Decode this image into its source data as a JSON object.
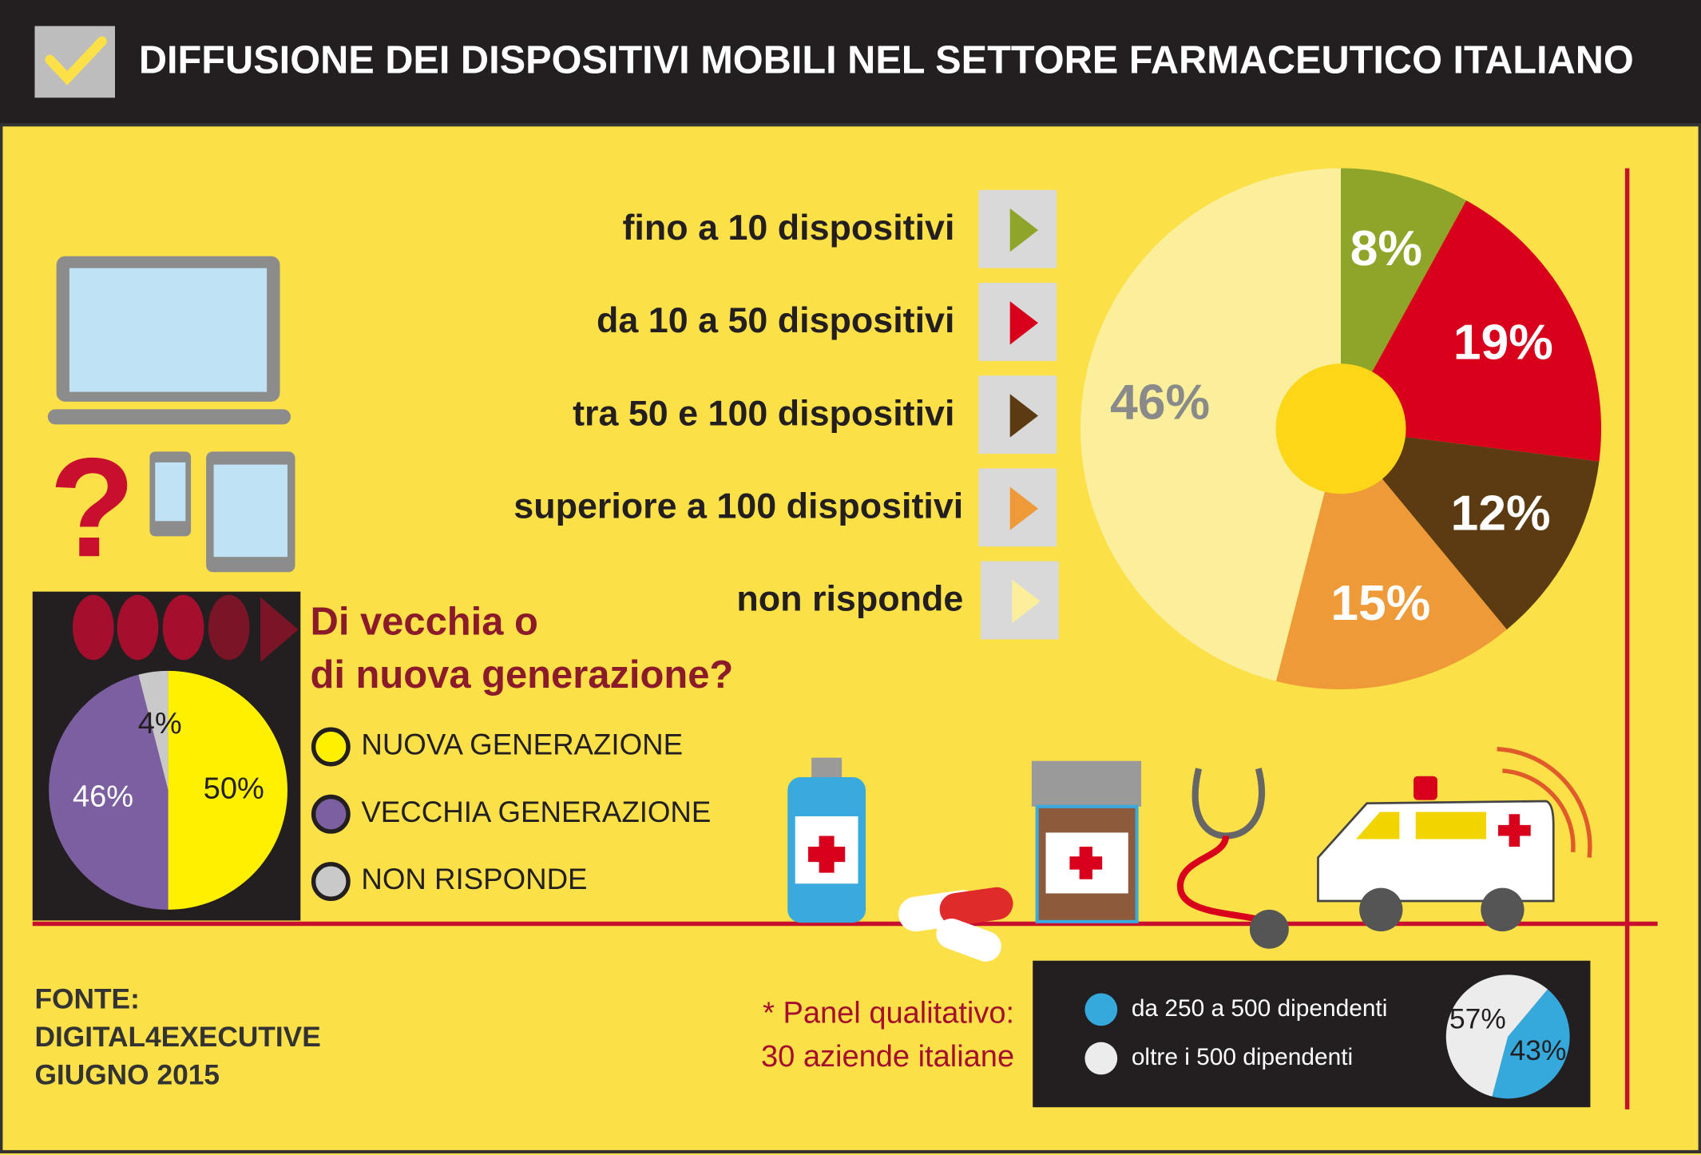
{
  "title": "DIFFUSIONE DEI DISPOSITIVI MOBILI NEL SETTORE FARMACEUTICO ITALIANO",
  "chart_data": [
    {
      "type": "pie",
      "categories": [
        "fino a 10 dispositivi",
        "da 10 a 50 dispositivi",
        "tra 50 e 100 dispositivi",
        "superiore a 100 dispositivi",
        "non risponde"
      ],
      "values": [
        8,
        19,
        12,
        15,
        46
      ],
      "value_labels": [
        "8%",
        "19%",
        "12%",
        "15%",
        "46%"
      ],
      "colors": [
        "#8fa52a",
        "#d9001c",
        "#5c3a12",
        "#ef9a38",
        "#fcef9c"
      ]
    },
    {
      "type": "pie",
      "title": [
        "Di vecchia o",
        "di nuova generazione?"
      ],
      "categories": [
        "NUOVA GENERAZIONE",
        "VECCHIA GENERAZIONE",
        "NON RISPONDE"
      ],
      "values": [
        50,
        46,
        4
      ],
      "value_labels": [
        "50%",
        "46%",
        "4%"
      ],
      "colors": [
        "#fff000",
        "#7b5fa0",
        "#c9c9c9"
      ]
    },
    {
      "type": "pie",
      "categories": [
        "da 250 a 500 dipendenti",
        "oltre i 500 dipendenti"
      ],
      "values": [
        43,
        57
      ],
      "value_labels": [
        "43%",
        "57%"
      ],
      "colors": [
        "#35a8dc",
        "#ececec"
      ]
    }
  ],
  "note": [
    "* Panel qualitativo:",
    "30 aziende italiane"
  ],
  "source": [
    "FONTE:",
    "DIGITAL4EXECUTIVE",
    "GIUGNO 2015"
  ]
}
